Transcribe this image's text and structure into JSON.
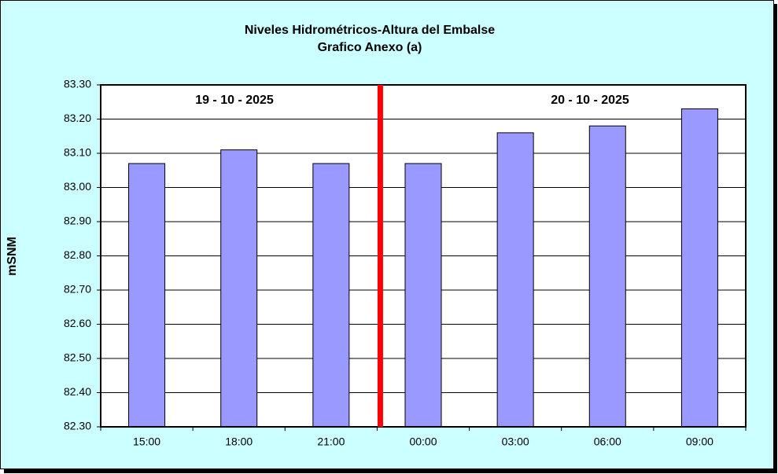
{
  "chart_data": {
    "type": "bar",
    "title": "Niveles Hidrométricos-Altura del Embalse",
    "subtitle": "Grafico Anexo (a)",
    "y_label": "mSNM",
    "annotations": [
      "19 - 10 - 2025",
      "20 - 10 - 2025"
    ],
    "categories": [
      "15:00",
      "18:00",
      "21:00",
      "00:00",
      "03:00",
      "06:00",
      "09:00"
    ],
    "values": [
      83.07,
      83.11,
      83.07,
      83.07,
      83.16,
      83.18,
      83.23
    ],
    "color": "#9999ff",
    "ylim": [
      82.3,
      83.3
    ],
    "yticks": [
      {
        "value": 82.3,
        "label": "82.30"
      },
      {
        "value": 82.4,
        "label": "82.40"
      },
      {
        "value": 82.5,
        "label": "82.50"
      },
      {
        "value": 82.6,
        "label": "82.60"
      },
      {
        "value": 82.7,
        "label": "82.70"
      },
      {
        "value": 82.8,
        "label": "82.80"
      },
      {
        "value": 82.9,
        "label": "82.90"
      },
      {
        "value": 83.0,
        "label": "83.00"
      },
      {
        "value": 83.1,
        "label": "83.10"
      },
      {
        "value": 83.2,
        "label": "83.20"
      },
      {
        "value": 83.3,
        "label": "83.30"
      }
    ],
    "grid": true
  }
}
